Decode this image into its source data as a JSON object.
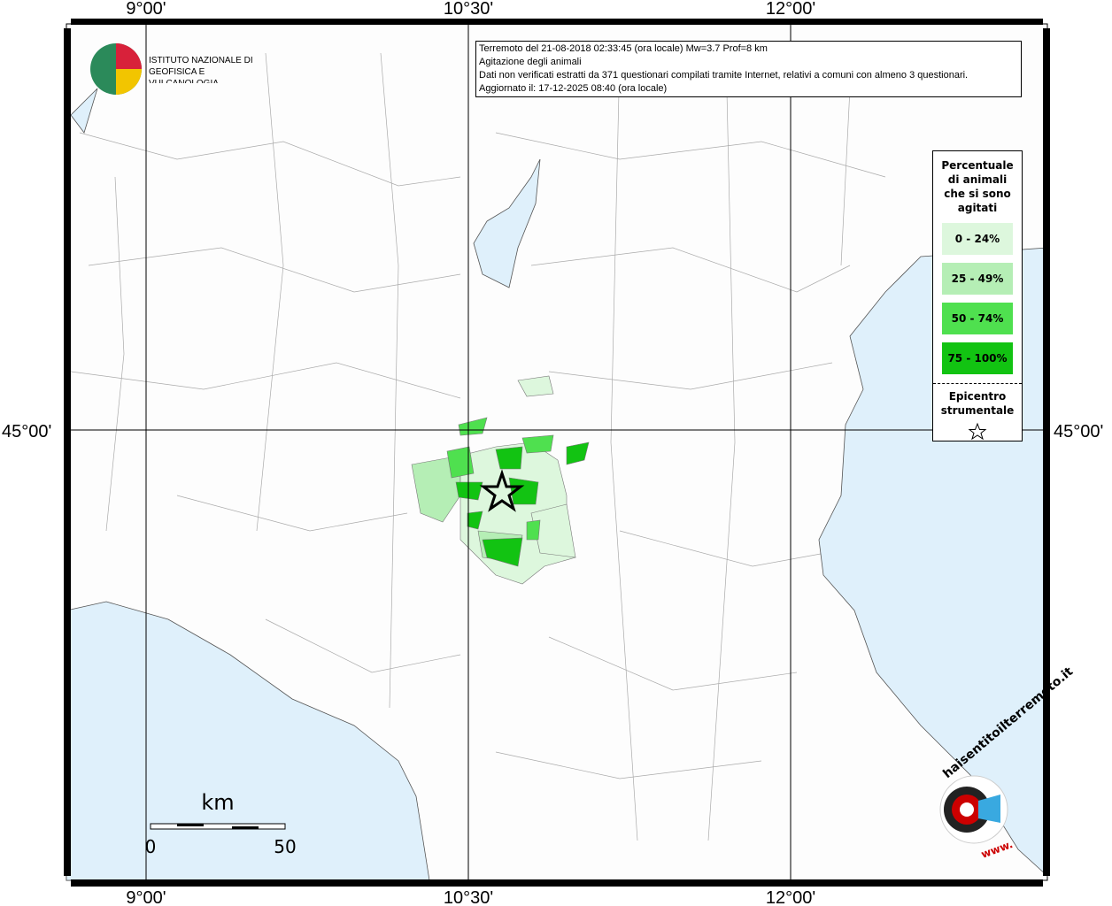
{
  "map": {
    "lon_labels": [
      "9°00'",
      "10°30'",
      "12°00'"
    ],
    "lat_labels": [
      "45°00'"
    ],
    "info": [
      "Terremoto del 21-08-2018 02:33:45 (ora locale) Mw=3.7 Prof=8 km",
      "Agitazione degli animali",
      "Dati non verificati estratti da 371 questionari compilati tramite Internet, relativi a comuni con almeno 3 questionari.",
      "Aggiornato il: 17-12-2025 08:40 (ora locale)"
    ],
    "legend": {
      "title": "Percentuale di animali che si sono agitati",
      "items": [
        {
          "label": "0 - 24%",
          "color": "#ddf7dd"
        },
        {
          "label": "25 - 49%",
          "color": "#b5eeb5"
        },
        {
          "label": "50 - 74%",
          "color": "#4fe04f"
        },
        {
          "label": "75 - 100%",
          "color": "#12c312"
        }
      ],
      "epicenter": "Epicentro strumentale"
    },
    "scale": {
      "unit": "km",
      "start": "0",
      "end": "50"
    },
    "logo": {
      "name": "ISTITUTO NAZIONALE DI GEOFISICA E VULCANOLOGIA",
      "site": "haisentitoilterremoto.it",
      "prefix": "www."
    }
  }
}
